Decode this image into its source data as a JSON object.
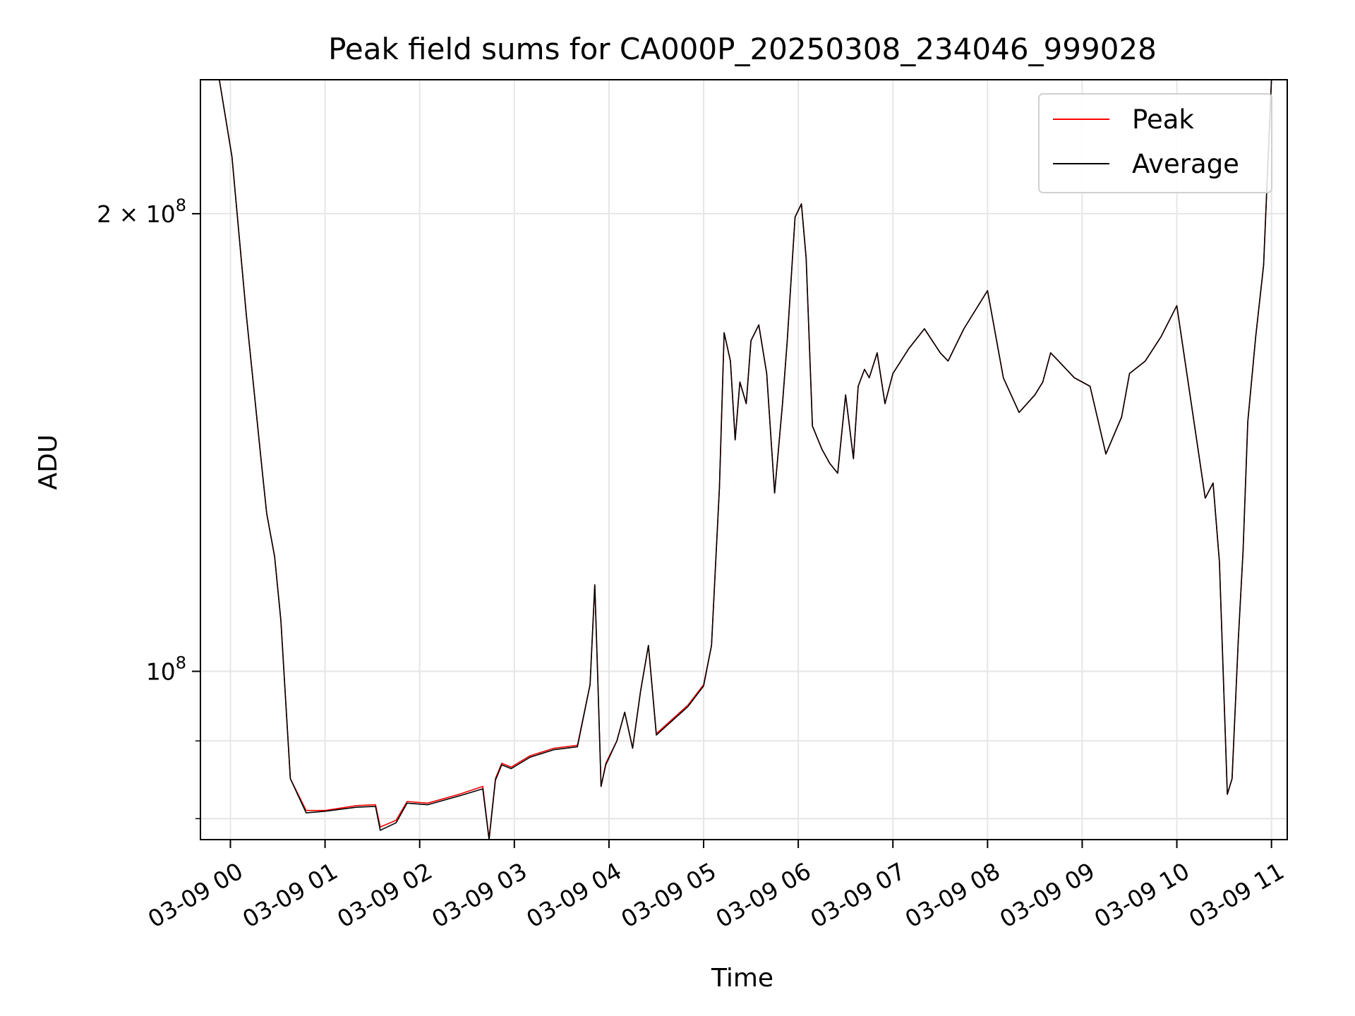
{
  "chart_data": {
    "type": "line",
    "title": "Peak field sums for CA000P_20250308_234046_999028",
    "xlabel": "Time",
    "ylabel": "ADU",
    "y_scale": "log",
    "ylim": [
      77500000,
      245000000
    ],
    "xlim": [
      "2025-03-08 23:41",
      "2025-03-09 11:10"
    ],
    "grid": true,
    "legend_position": "top-right",
    "x_ticks": [
      "03-09 00",
      "03-09 01",
      "03-09 02",
      "03-09 03",
      "03-09 04",
      "03-09 05",
      "03-09 06",
      "03-09 07",
      "03-09 08",
      "03-09 09",
      "03-09 10",
      "03-09 11"
    ],
    "y_tick_labels": [
      {
        "value": 200000000,
        "mantissa": "2",
        "exponent": "8"
      },
      {
        "value": 100000000,
        "mantissa": "",
        "exponent": "8"
      }
    ],
    "y_minor_ticks": [
      80000000,
      90000000
    ],
    "colors": {
      "Peak": "#ff0000",
      "Average": "#000000"
    },
    "x": [
      "2025-03-08 23:53",
      "2025-03-09 00:01",
      "2025-03-09 00:10",
      "2025-03-09 00:20",
      "2025-03-09 00:23",
      "2025-03-09 00:28",
      "2025-03-09 00:32",
      "2025-03-09 00:38",
      "2025-03-09 00:48",
      "2025-03-09 01:00",
      "2025-03-09 01:20",
      "2025-03-09 01:32",
      "2025-03-09 01:35",
      "2025-03-09 01:45",
      "2025-03-09 01:52",
      "2025-03-09 02:05",
      "2025-03-09 02:25",
      "2025-03-09 02:40",
      "2025-03-09 02:44",
      "2025-03-09 02:48",
      "2025-03-09 02:52",
      "2025-03-09 02:58",
      "2025-03-09 03:02",
      "2025-03-09 03:10",
      "2025-03-09 03:25",
      "2025-03-09 03:40",
      "2025-03-09 03:48",
      "2025-03-09 03:51",
      "2025-03-09 03:53",
      "2025-03-09 03:55",
      "2025-03-09 03:58",
      "2025-03-09 04:05",
      "2025-03-09 04:10",
      "2025-03-09 04:15",
      "2025-03-09 04:20",
      "2025-03-09 04:25",
      "2025-03-09 04:30",
      "2025-03-09 04:50",
      "2025-03-09 05:00",
      "2025-03-09 05:05",
      "2025-03-09 05:10",
      "2025-03-09 05:13",
      "2025-03-09 05:17",
      "2025-03-09 05:20",
      "2025-03-09 05:23",
      "2025-03-09 05:27",
      "2025-03-09 05:30",
      "2025-03-09 05:35",
      "2025-03-09 05:40",
      "2025-03-09 05:45",
      "2025-03-09 05:50",
      "2025-03-09 05:53",
      "2025-03-09 05:58",
      "2025-03-09 06:02",
      "2025-03-09 06:05",
      "2025-03-09 06:09",
      "2025-03-09 06:15",
      "2025-03-09 06:20",
      "2025-03-09 06:25",
      "2025-03-09 06:30",
      "2025-03-09 06:35",
      "2025-03-09 06:38",
      "2025-03-09 06:42",
      "2025-03-09 06:45",
      "2025-03-09 06:50",
      "2025-03-09 06:55",
      "2025-03-09 07:00",
      "2025-03-09 07:10",
      "2025-03-09 07:20",
      "2025-03-09 07:30",
      "2025-03-09 07:35",
      "2025-03-09 07:45",
      "2025-03-09 08:00",
      "2025-03-09 08:10",
      "2025-03-09 08:20",
      "2025-03-09 08:30",
      "2025-03-09 08:35",
      "2025-03-09 08:40",
      "2025-03-09 08:45",
      "2025-03-09 08:55",
      "2025-03-09 09:05",
      "2025-03-09 09:15",
      "2025-03-09 09:25",
      "2025-03-09 09:30",
      "2025-03-09 09:40",
      "2025-03-09 09:50",
      "2025-03-09 10:00",
      "2025-03-09 10:10",
      "2025-03-09 10:18",
      "2025-03-09 10:23",
      "2025-03-09 10:27",
      "2025-03-09 10:32",
      "2025-03-09 10:35",
      "2025-03-09 10:39",
      "2025-03-09 10:42",
      "2025-03-09 10:45",
      "2025-03-09 10:50",
      "2025-03-09 10:55",
      "2025-03-09 11:00"
    ],
    "series": [
      {
        "name": "Peak",
        "values": [
          245000000,
          218000000,
          172000000,
          136000000,
          127000000,
          119000000,
          108000000,
          85000000,
          81000000,
          81000000,
          81600000,
          81700000,
          79000000,
          79800000,
          82100000,
          81900000,
          83000000,
          84000000,
          77600000,
          85000000,
          87000000,
          86500000,
          87000000,
          88000000,
          89000000,
          89400000,
          98000000,
          114000000,
          98000000,
          84000000,
          87000000,
          90000000,
          94000000,
          89000000,
          97000000,
          104000000,
          91000000,
          95000000,
          98000000,
          104000000,
          132000000,
          167000000,
          160000000,
          142000000,
          155000000,
          150000000,
          165000000,
          169000000,
          157000000,
          131000000,
          150000000,
          165000000,
          199000000,
          203000000,
          187000000,
          145000000,
          140000000,
          137000000,
          135000000,
          152000000,
          138000000,
          154000000,
          158000000,
          156000000,
          162000000,
          150000000,
          157000000,
          163000000,
          168000000,
          162000000,
          160000000,
          168000000,
          178000000,
          156000000,
          148000000,
          152000000,
          155000000,
          162000000,
          160000000,
          156000000,
          154000000,
          139000000,
          147000000,
          157000000,
          160000000,
          166000000,
          174000000,
          148000000,
          130000000,
          133000000,
          118000000,
          83000000,
          85000000,
          105000000,
          120000000,
          146000000,
          166000000,
          185000000,
          245000000
        ]
      },
      {
        "name": "Average",
        "values": [
          245000000,
          218000000,
          172000000,
          136000000,
          127000000,
          119000000,
          108000000,
          85000000,
          80700000,
          80900000,
          81400000,
          81500000,
          78600000,
          79500000,
          81900000,
          81700000,
          82800000,
          83700000,
          77500000,
          84800000,
          86800000,
          86300000,
          86800000,
          87800000,
          88800000,
          89200000,
          98000000,
          114000000,
          98000000,
          84000000,
          86800000,
          90000000,
          94000000,
          89000000,
          97000000,
          104000000,
          90800000,
          94800000,
          97800000,
          104000000,
          132000000,
          167000000,
          160000000,
          142000000,
          155000000,
          150000000,
          165000000,
          169000000,
          157000000,
          131000000,
          150000000,
          165000000,
          199000000,
          203000000,
          187000000,
          145000000,
          140000000,
          137000000,
          135000000,
          152000000,
          138000000,
          154000000,
          158000000,
          156000000,
          162000000,
          150000000,
          157000000,
          163000000,
          168000000,
          162000000,
          160000000,
          168000000,
          178000000,
          156000000,
          148000000,
          152000000,
          155000000,
          162000000,
          160000000,
          156000000,
          154000000,
          139000000,
          147000000,
          157000000,
          160000000,
          166000000,
          174000000,
          148000000,
          130000000,
          133000000,
          118000000,
          83000000,
          85000000,
          105000000,
          120000000,
          146000000,
          166000000,
          185000000,
          245000000
        ]
      }
    ]
  }
}
